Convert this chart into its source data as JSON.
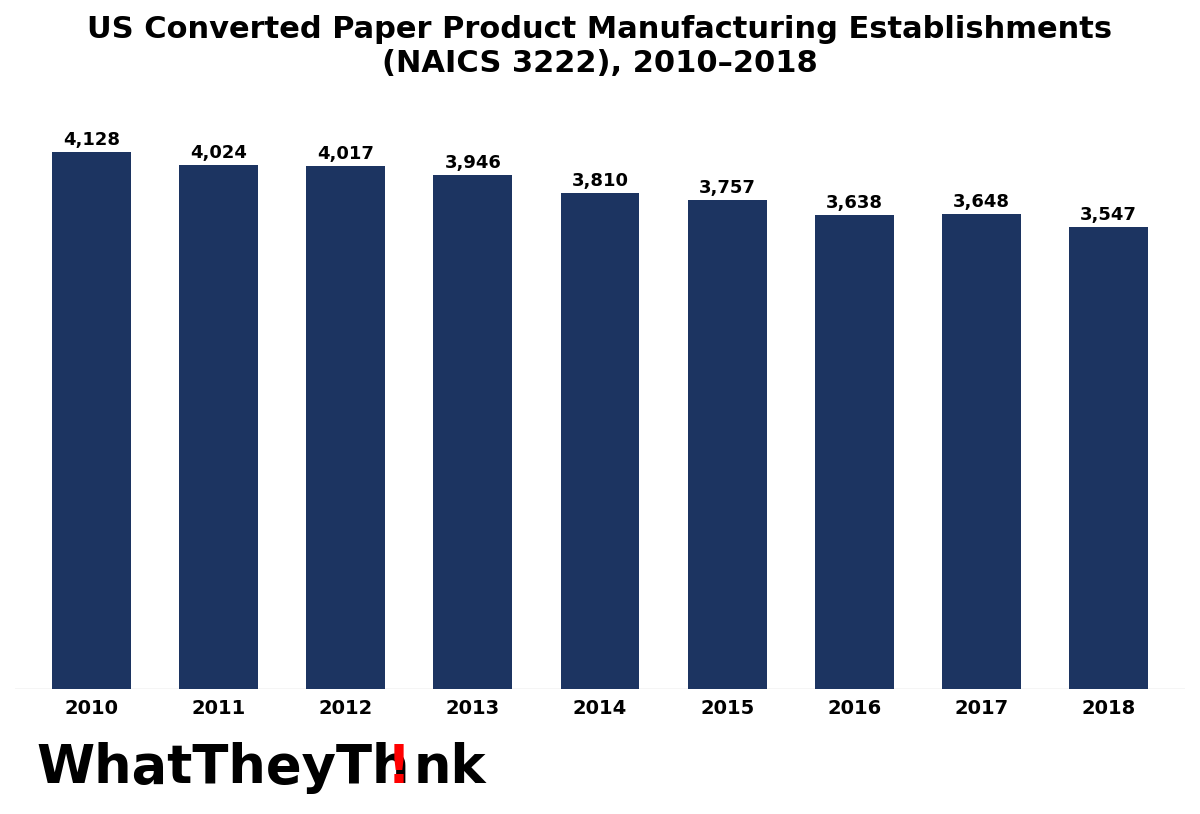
{
  "years": [
    "2010",
    "2011",
    "2012",
    "2013",
    "2014",
    "2015",
    "2016",
    "2017",
    "2018"
  ],
  "values": [
    4128,
    4024,
    4017,
    3946,
    3810,
    3757,
    3638,
    3648,
    3547
  ],
  "bar_color": "#1c3461",
  "background_color": "#ffffff",
  "title_line1": "US Converted Paper Product Manufacturing Establishments",
  "title_line2": "(NAICS 3222), 2010–2018",
  "title_fontsize": 22,
  "label_fontsize": 13,
  "tick_fontsize": 14,
  "ylim_max": 4550,
  "bar_width": 0.62,
  "logo_fontsize": 38
}
